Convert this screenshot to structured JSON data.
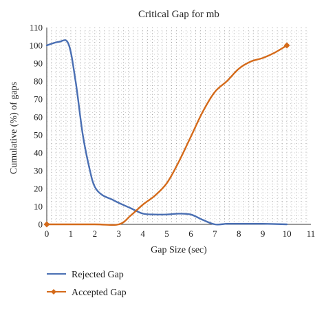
{
  "chart_data": {
    "type": "line",
    "title": "Critical Gap for mb",
    "xlabel": "Gap Size (sec)",
    "ylabel": "Cumulative (%) of gaps",
    "xlim": [
      0,
      11
    ],
    "ylim": [
      0,
      110
    ],
    "x_ticks": [
      "0",
      "1",
      "2",
      "3",
      "4",
      "5",
      "6",
      "7",
      "8",
      "9",
      "10",
      "11"
    ],
    "y_ticks": [
      "0",
      "10",
      "20",
      "30",
      "40",
      "50",
      "60",
      "70",
      "80",
      "90",
      "100",
      "110"
    ],
    "grid": "dotted",
    "legend_position": "bottom-left",
    "series": [
      {
        "name": "Rejected Gap",
        "color": "#4a6fb3",
        "marker": "none",
        "points": [
          [
            0,
            100
          ],
          [
            0.5,
            102
          ],
          [
            0.9,
            101
          ],
          [
            1.2,
            80
          ],
          [
            1.5,
            50
          ],
          [
            1.8,
            30
          ],
          [
            2,
            21
          ],
          [
            2.3,
            16.5
          ],
          [
            2.7,
            14
          ],
          [
            3,
            12
          ],
          [
            3.5,
            9
          ],
          [
            4,
            6
          ],
          [
            4.5,
            5.5
          ],
          [
            5,
            5.5
          ],
          [
            5.5,
            6
          ],
          [
            6,
            5.5
          ],
          [
            6.5,
            2.5
          ],
          [
            7,
            0
          ],
          [
            7.5,
            0.3
          ],
          [
            8,
            0.3
          ],
          [
            9,
            0.3
          ],
          [
            10,
            0
          ]
        ]
      },
      {
        "name": "Accepted Gap",
        "color": "#d46a1a",
        "marker": "diamond",
        "points": [
          [
            0,
            0
          ],
          [
            2,
            0
          ],
          [
            3,
            0
          ],
          [
            3.5,
            5
          ],
          [
            4,
            11
          ],
          [
            4.5,
            16
          ],
          [
            5,
            23
          ],
          [
            5.5,
            35
          ],
          [
            6,
            49
          ],
          [
            6.5,
            63
          ],
          [
            7,
            74
          ],
          [
            7.5,
            80
          ],
          [
            8,
            87
          ],
          [
            8.5,
            91
          ],
          [
            9,
            93
          ],
          [
            9.5,
            96
          ],
          [
            10,
            100
          ]
        ]
      }
    ]
  }
}
